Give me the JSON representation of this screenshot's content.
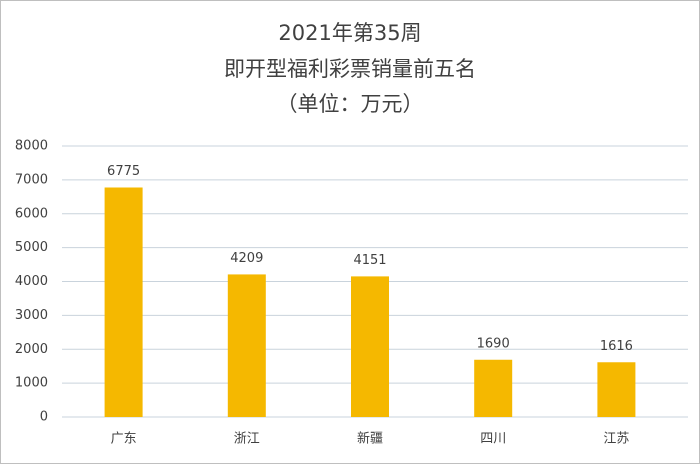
{
  "chart_data": {
    "type": "bar",
    "title": [
      "2021年第35周",
      "即开型福利彩票销量前五名",
      "（单位：万元）"
    ],
    "categories": [
      "广东",
      "浙江",
      "新疆",
      "四川",
      "江苏"
    ],
    "values": [
      6775,
      4209,
      4151,
      1690,
      1616
    ],
    "color": "#f5b800",
    "ylim": [
      0,
      8000
    ],
    "yticks": [
      0,
      1000,
      2000,
      3000,
      4000,
      5000,
      6000,
      7000,
      8000
    ],
    "grid": true,
    "show_value_labels": true
  }
}
